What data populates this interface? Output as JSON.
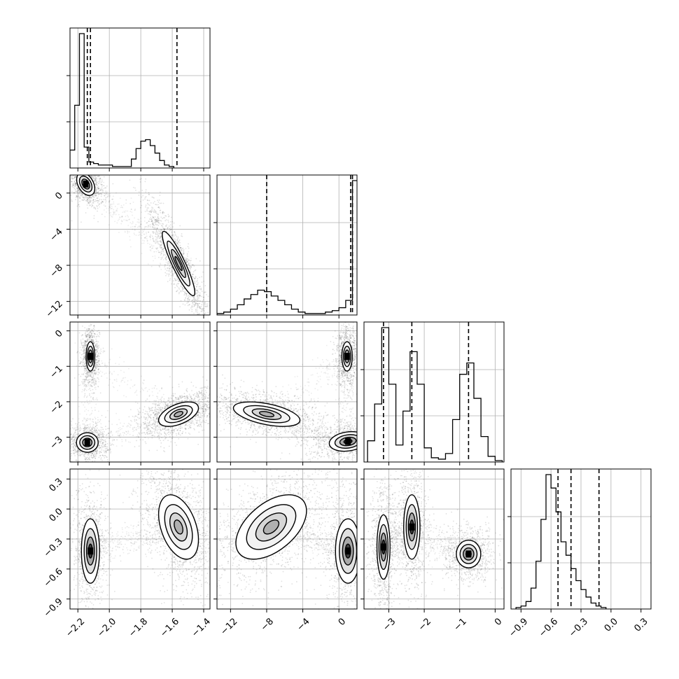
{
  "chart_data": {
    "type": "corner",
    "title": "",
    "grid": true,
    "n_params": 4,
    "params": [
      {
        "label": "",
        "range": [
          -2.25,
          -1.36
        ],
        "ticks": [
          -2.2,
          -2.0,
          -1.8,
          -1.6,
          -1.4
        ],
        "tick_labels": [
          "−2.2",
          "−2.0",
          "−1.8",
          "−1.6",
          "−1.4"
        ],
        "quantiles": [
          -2.14,
          -2.12,
          -1.57
        ],
        "hist": {
          "bin_start": -2.25,
          "bin_width": 0.03,
          "counts": [
            1.2,
            4.2,
            9.0,
            1.4,
            0.4,
            0.3,
            0.2,
            0.2,
            0.2,
            0.1,
            0.1,
            0.1,
            0.1,
            0.6,
            1.3,
            1.8,
            1.9,
            1.5,
            1.0,
            0.5,
            0.2,
            0.1
          ]
        }
      },
      {
        "label": "",
        "range": [
          -13.5,
          2.0
        ],
        "ticks": [
          -12,
          -8,
          -4,
          0
        ],
        "tick_labels": [
          "−12",
          "−8",
          "−4",
          "0"
        ],
        "quantiles": [
          -8.0,
          1.3,
          1.5
        ],
        "hist": {
          "bin_start": -13.5,
          "bin_width": 0.75,
          "counts": [
            0.1,
            0.2,
            0.4,
            0.7,
            1.1,
            1.4,
            1.7,
            1.6,
            1.3,
            1.0,
            0.7,
            0.4,
            0.2,
            0.1,
            0.1,
            0.1,
            0.2,
            0.3,
            0.5,
            1.0,
            9.2,
            3.0
          ]
        }
      },
      {
        "label": "",
        "range": [
          -3.7,
          0.25
        ],
        "ticks": [
          -3,
          -2,
          -1,
          0
        ],
        "tick_labels": [
          "−3",
          "−2",
          "−1",
          "0"
        ],
        "quantiles": [
          -3.15,
          -2.35,
          -0.75
        ],
        "hist": {
          "bin_start": -3.6,
          "bin_width": 0.2,
          "counts": [
            1.5,
            4.1,
            9.5,
            5.5,
            1.2,
            3.6,
            7.8,
            5.5,
            1.0,
            0.3,
            0.2,
            0.6,
            3.0,
            6.2,
            7.0,
            4.5,
            1.8,
            0.4,
            0.1
          ]
        }
      },
      {
        "label": "",
        "range": [
          -1.0,
          0.4
        ],
        "ticks": [
          -0.9,
          -0.6,
          -0.3,
          0.0,
          0.3
        ],
        "tick_labels": [
          "−0.9",
          "−0.6",
          "−0.3",
          "0.0",
          "0.3"
        ],
        "quantiles": [
          -0.53,
          -0.4,
          -0.12
        ],
        "hist": {
          "bin_start": -0.95,
          "bin_width": 0.05,
          "counts": [
            0.1,
            0.2,
            0.5,
            1.4,
            3.2,
            6.0,
            9.0,
            8.1,
            6.5,
            4.5,
            3.6,
            2.7,
            1.9,
            1.3,
            0.8,
            0.4,
            0.2,
            0.1
          ]
        }
      }
    ],
    "pairs": [
      {
        "x_param": 0,
        "y_param": 1,
        "modes": [
          {
            "cx": -2.15,
            "cy": 1.0,
            "sx": 0.025,
            "sy": 0.55,
            "rho": -0.4,
            "density": "high"
          },
          {
            "cx": -1.56,
            "cy": -7.8,
            "sx": 0.045,
            "sy": 1.55,
            "rho": -0.9,
            "density": "medium"
          }
        ]
      },
      {
        "x_param": 0,
        "y_param": 2,
        "modes": [
          {
            "cx": -2.12,
            "cy": -0.72,
            "sx": 0.012,
            "sy": 0.18,
            "rho": 0.0,
            "density": "high"
          },
          {
            "cx": -2.14,
            "cy": -3.15,
            "sx": 0.03,
            "sy": 0.12,
            "rho": 0.0,
            "density": "high"
          },
          {
            "cx": -1.56,
            "cy": -2.35,
            "sx": 0.055,
            "sy": 0.15,
            "rho": 0.5,
            "density": "medium"
          }
        ]
      },
      {
        "x_param": 1,
        "y_param": 2,
        "modes": [
          {
            "cx": 0.9,
            "cy": -0.72,
            "sx": 0.25,
            "sy": 0.18,
            "rho": 0.0,
            "density": "high"
          },
          {
            "cx": 1.0,
            "cy": -3.12,
            "sx": 0.9,
            "sy": 0.12,
            "rho": 0.2,
            "density": "high"
          },
          {
            "cx": -8.0,
            "cy": -2.35,
            "sx": 1.6,
            "sy": 0.15,
            "rho": -0.5,
            "density": "medium"
          }
        ]
      },
      {
        "x_param": 0,
        "y_param": 3,
        "modes": [
          {
            "cx": -2.12,
            "cy": -0.42,
            "sx": 0.025,
            "sy": 0.14,
            "rho": 0.0,
            "density": "high"
          },
          {
            "cx": -1.56,
            "cy": -0.18,
            "sx": 0.055,
            "sy": 0.14,
            "rho": -0.4,
            "density": "medium"
          }
        ]
      },
      {
        "x_param": 1,
        "y_param": 3,
        "modes": [
          {
            "cx": 1.0,
            "cy": -0.42,
            "sx": 0.6,
            "sy": 0.14,
            "rho": 0.0,
            "density": "high"
          },
          {
            "cx": -7.5,
            "cy": -0.18,
            "sx": 1.7,
            "sy": 0.14,
            "rho": 0.5,
            "density": "medium"
          }
        ]
      },
      {
        "x_param": 2,
        "y_param": 3,
        "modes": [
          {
            "cx": -3.15,
            "cy": -0.38,
            "sx": 0.08,
            "sy": 0.14,
            "rho": 0.0,
            "density": "high"
          },
          {
            "cx": -2.35,
            "cy": -0.18,
            "sx": 0.1,
            "sy": 0.14,
            "rho": 0.0,
            "density": "high"
          },
          {
            "cx": -0.75,
            "cy": -0.45,
            "sx": 0.15,
            "sy": 0.06,
            "rho": 0.0,
            "density": "high"
          }
        ]
      }
    ]
  }
}
